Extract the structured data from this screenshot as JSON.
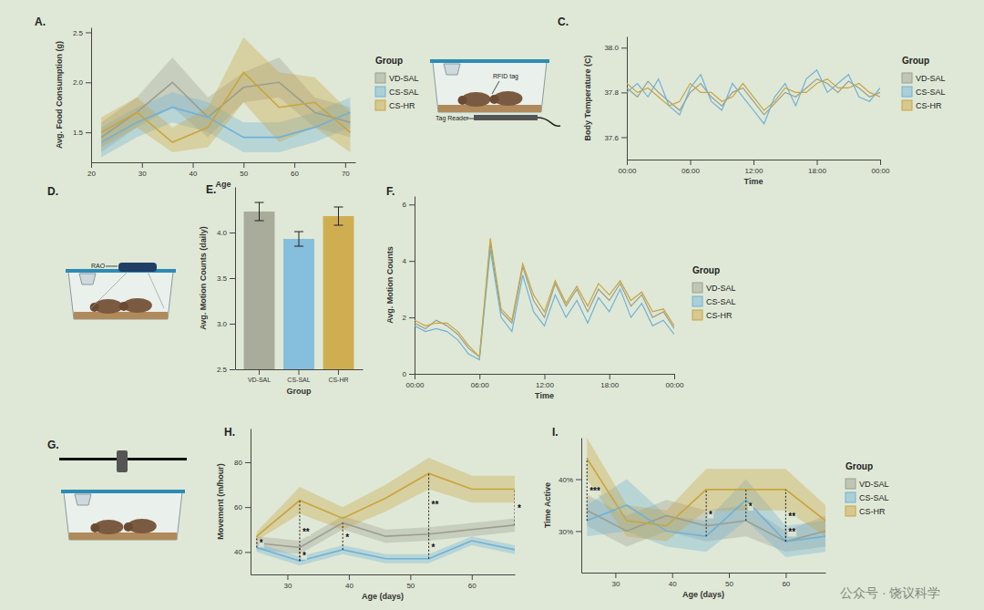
{
  "chart_data": [
    {
      "type": "line",
      "panel_label": "A.",
      "x_label": "Age",
      "y_label": "Avg. Food Consumption (g)",
      "x": [
        22,
        29,
        36,
        43,
        50,
        57,
        64,
        71
      ],
      "xlim": [
        20,
        72
      ],
      "xticks": [
        20,
        30,
        40,
        50,
        60,
        70
      ],
      "ylim": [
        1.2,
        2.55
      ],
      "yticks": [
        1.5,
        {
          "value": 2,
          "label": "2.0"
        },
        2.5
      ],
      "legend": "right",
      "legend_title": "Group",
      "series": [
        {
          "name": "VD-SAL",
          "color": "#9c9e8e",
          "values": [
            1.45,
            1.7,
            2.0,
            1.65,
            1.95,
            2.0,
            1.7,
            1.6
          ],
          "lower": [
            1.3,
            1.55,
            1.75,
            1.45,
            1.8,
            1.85,
            1.55,
            1.45
          ],
          "upper": [
            1.6,
            1.85,
            2.25,
            1.85,
            2.1,
            2.25,
            1.85,
            1.75
          ]
        },
        {
          "name": "CS-SAL",
          "color": "#6fb1d8",
          "values": [
            1.4,
            1.6,
            1.75,
            1.65,
            1.45,
            1.45,
            1.55,
            1.7
          ],
          "lower": [
            1.25,
            1.45,
            1.6,
            1.5,
            1.3,
            1.3,
            1.4,
            1.55
          ],
          "upper": [
            1.55,
            1.75,
            1.9,
            1.8,
            1.6,
            1.6,
            1.7,
            1.85
          ]
        },
        {
          "name": "CS-HR",
          "color": "#c9a43e",
          "values": [
            1.5,
            1.7,
            1.4,
            1.55,
            2.1,
            1.75,
            1.8,
            1.5
          ],
          "lower": [
            1.35,
            1.55,
            1.3,
            1.35,
            1.8,
            1.4,
            1.55,
            1.3
          ],
          "upper": [
            1.65,
            1.85,
            1.55,
            1.75,
            2.45,
            2.1,
            2.05,
            1.7
          ]
        }
      ]
    },
    {
      "type": "line",
      "panel_label": "C.",
      "x_label": "Time",
      "y_label": "Body Temperature (C)",
      "x": [
        0,
        1,
        2,
        3,
        4,
        5,
        6,
        7,
        8,
        9,
        10,
        11,
        12,
        13,
        14,
        15,
        16,
        17,
        18,
        19,
        20,
        21,
        22,
        23,
        24
      ],
      "xlim": [
        0,
        24
      ],
      "xticks": [
        {
          "value": 0,
          "label": "00:00"
        },
        {
          "value": 6,
          "label": "06:00"
        },
        {
          "value": 12,
          "label": "12:00"
        },
        {
          "value": 18,
          "label": "18:00"
        },
        {
          "value": 24,
          "label": "00:00"
        }
      ],
      "ylim": [
        37.5,
        38.05
      ],
      "yticks": [
        37.6,
        37.8,
        {
          "value": 38,
          "label": "38.0"
        }
      ],
      "legend": "right",
      "legend_title": "Group",
      "series": [
        {
          "name": "VD-SAL",
          "color": "#9c9e8e",
          "values": [
            37.82,
            37.78,
            37.85,
            37.8,
            37.76,
            37.72,
            37.8,
            37.84,
            37.78,
            37.74,
            37.8,
            37.82,
            37.76,
            37.7,
            37.75,
            37.8,
            37.78,
            37.82,
            37.86,
            37.84,
            37.8,
            37.85,
            37.82,
            37.78,
            37.8
          ]
        },
        {
          "name": "CS-SAL",
          "color": "#6fb1d8",
          "values": [
            37.8,
            37.84,
            37.78,
            37.86,
            37.74,
            37.7,
            37.82,
            37.88,
            37.76,
            37.72,
            37.84,
            37.78,
            37.72,
            37.66,
            37.78,
            37.84,
            37.74,
            37.86,
            37.9,
            37.8,
            37.84,
            37.88,
            37.78,
            37.76,
            37.82
          ]
        },
        {
          "name": "CS-HR",
          "color": "#c9a43e",
          "values": [
            37.84,
            37.8,
            37.82,
            37.78,
            37.74,
            37.76,
            37.84,
            37.8,
            37.8,
            37.76,
            37.78,
            37.84,
            37.78,
            37.72,
            37.76,
            37.82,
            37.8,
            37.8,
            37.84,
            37.86,
            37.82,
            37.82,
            37.84,
            37.8,
            37.78
          ]
        }
      ]
    },
    {
      "type": "bar",
      "panel_label": "E.",
      "x_label": "Group",
      "y_label": "Avg. Motion Counts (daily)",
      "categories": [
        "VD-SAL",
        "CS-SAL",
        "CS-HR"
      ],
      "values": [
        4.23,
        3.93,
        4.18
      ],
      "errors": [
        0.1,
        0.08,
        0.1
      ],
      "colors": [
        "#a9ab9b",
        "#86bedd",
        "#cfae52"
      ],
      "ylim": [
        2.5,
        4.5
      ],
      "yticks": [
        2.5,
        {
          "value": 3,
          "label": "3.0"
        },
        3.5,
        {
          "value": 4,
          "label": "4.0"
        }
      ]
    },
    {
      "type": "line",
      "panel_label": "F.",
      "x_label": "Time",
      "y_label": "Avg. Motion Counts",
      "x": [
        0,
        1,
        2,
        3,
        4,
        5,
        6,
        7,
        8,
        9,
        10,
        11,
        12,
        13,
        14,
        15,
        16,
        17,
        18,
        19,
        20,
        21,
        22,
        23,
        24
      ],
      "xlim": [
        0,
        24
      ],
      "xticks": [
        {
          "value": 0,
          "label": "00:00"
        },
        {
          "value": 6,
          "label": "06:00"
        },
        {
          "value": 12,
          "label": "12:00"
        },
        {
          "value": 18,
          "label": "18:00"
        },
        {
          "value": 24,
          "label": "00:00"
        }
      ],
      "ylim": [
        0,
        6.3
      ],
      "yticks": [
        0,
        2,
        4,
        6
      ],
      "legend": "right",
      "legend_title": "Group",
      "series": [
        {
          "name": "VD-SAL",
          "color": "#9c9e8e",
          "values": [
            1.8,
            1.6,
            1.9,
            1.7,
            1.4,
            0.9,
            0.6,
            4.6,
            2.2,
            1.8,
            3.8,
            2.6,
            2.0,
            3.2,
            2.4,
            3.0,
            2.2,
            3.0,
            2.6,
            3.2,
            2.4,
            2.8,
            2.0,
            2.2,
            1.6
          ]
        },
        {
          "name": "CS-SAL",
          "color": "#6fb1d8",
          "values": [
            1.7,
            1.5,
            1.6,
            1.5,
            1.2,
            0.7,
            0.5,
            4.4,
            2.0,
            1.5,
            3.5,
            2.2,
            1.7,
            2.8,
            2.0,
            2.6,
            1.8,
            2.7,
            2.2,
            3.0,
            2.0,
            2.5,
            1.7,
            1.9,
            1.4
          ]
        },
        {
          "name": "CS-HR",
          "color": "#c9a43e",
          "values": [
            1.9,
            1.7,
            1.8,
            1.8,
            1.5,
            1.0,
            0.6,
            4.8,
            2.3,
            1.9,
            3.9,
            2.8,
            2.2,
            3.3,
            2.5,
            3.1,
            2.4,
            3.2,
            2.8,
            3.3,
            2.6,
            2.9,
            2.2,
            2.3,
            1.7
          ]
        }
      ]
    },
    {
      "type": "line",
      "panel_label": "H.",
      "x_label": "Age (days)",
      "y_label": "Movement (m/hour)",
      "x": [
        25,
        32,
        39,
        46,
        53,
        60,
        67
      ],
      "xlim": [
        24,
        67
      ],
      "xticks": [
        30,
        40,
        50,
        60
      ],
      "ylim": [
        30,
        95
      ],
      "yticks": [
        40,
        60,
        80
      ],
      "series": [
        {
          "color": "#9c9e8e",
          "values": [
            44,
            42,
            53,
            47,
            48,
            50,
            52
          ],
          "lower": [
            41,
            39,
            50,
            44,
            45,
            47,
            49
          ],
          "upper": [
            47,
            45,
            56,
            50,
            51,
            53,
            55
          ]
        },
        {
          "color": "#6fb1d8",
          "values": [
            42,
            36,
            41,
            37,
            37,
            45,
            41
          ],
          "lower": [
            40,
            34,
            39,
            35,
            35,
            43,
            39
          ],
          "upper": [
            44,
            38,
            43,
            39,
            39,
            47,
            43
          ]
        },
        {
          "color": "#c9a43e",
          "values": [
            47,
            63,
            55,
            64,
            75,
            68,
            68
          ],
          "lower": [
            45,
            57,
            50,
            58,
            68,
            62,
            62
          ],
          "upper": [
            49,
            69,
            60,
            70,
            82,
            74,
            74
          ]
        }
      ],
      "comparisons": [
        {
          "x": 25,
          "ylo": 42,
          "yhi": 47,
          "label": "*"
        },
        {
          "x": 32,
          "ylo": 36,
          "yhi": 63,
          "label": "**"
        },
        {
          "x": 32,
          "ylo": 36,
          "yhi": 42,
          "label": "*"
        },
        {
          "x": 39,
          "ylo": 41,
          "yhi": 53,
          "label": "*"
        },
        {
          "x": 53,
          "ylo": 48,
          "yhi": 75,
          "label": "**"
        },
        {
          "x": 53,
          "ylo": 37,
          "yhi": 48,
          "label": "*"
        },
        {
          "x": 67,
          "ylo": 52,
          "yhi": 68,
          "label": "*"
        }
      ]
    },
    {
      "type": "line",
      "panel_label": "I.",
      "x_label": "Age (days)",
      "y_label": "Time Active",
      "x": [
        25,
        32,
        39,
        46,
        53,
        60,
        67
      ],
      "xlim": [
        24,
        67
      ],
      "xticks": [
        30,
        40,
        50,
        60
      ],
      "ylim": [
        22,
        48
      ],
      "yticks": [
        {
          "value": 30,
          "label": "30%"
        },
        {
          "value": 40,
          "label": "40%"
        }
      ],
      "legend": "right",
      "legend_title": "Group",
      "series": [
        {
          "name": "VD-SAL",
          "color": "#9c9e8e",
          "values": [
            34,
            30,
            33,
            31,
            32,
            28,
            30
          ],
          "lower": [
            31,
            27,
            30,
            28,
            29,
            26,
            27
          ],
          "upper": [
            37,
            33,
            36,
            34,
            35,
            30,
            33
          ]
        },
        {
          "name": "CS-SAL",
          "color": "#6fb1d8",
          "values": [
            32,
            35,
            30,
            29,
            36,
            28,
            29
          ],
          "lower": [
            29,
            30,
            27,
            26,
            32,
            25,
            26
          ],
          "upper": [
            35,
            40,
            33,
            32,
            40,
            31,
            32
          ]
        },
        {
          "name": "CS-HR",
          "color": "#c9a43e",
          "values": [
            44,
            32,
            31,
            38,
            38,
            38,
            32
          ],
          "lower": [
            40,
            29,
            28,
            34,
            34,
            34,
            29
          ],
          "upper": [
            48,
            35,
            34,
            42,
            42,
            42,
            35
          ]
        }
      ],
      "comparisons": [
        {
          "x": 25,
          "ylo": 32,
          "yhi": 44,
          "label": "***"
        },
        {
          "x": 46,
          "ylo": 29,
          "yhi": 38,
          "label": "*"
        },
        {
          "x": 53,
          "ylo": 32,
          "yhi": 38,
          "label": "*"
        },
        {
          "x": 60,
          "ylo": 28,
          "yhi": 38,
          "label": "**"
        },
        {
          "x": 60,
          "ylo": 28,
          "yhi": 32,
          "label": "**"
        }
      ]
    }
  ],
  "schematics": [
    {
      "labels": [
        "RFID tag",
        "Tag Reader"
      ]
    },
    {
      "panel_label": "D.",
      "labels": [
        "RAO"
      ]
    },
    {
      "panel_label": "G."
    }
  ],
  "watermark": "公众号 · 饶议科学"
}
